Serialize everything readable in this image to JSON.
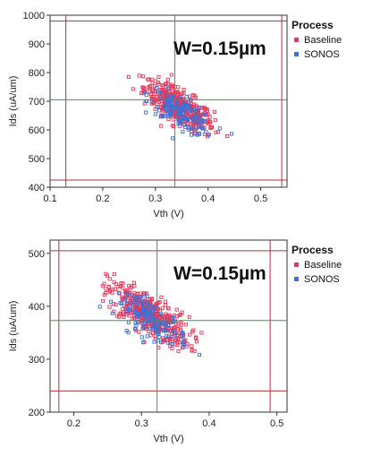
{
  "chart_data": [
    {
      "type": "scatter",
      "title": "",
      "xlabel": "Vth (V)",
      "ylabel": "Ids (uA/um)",
      "xlim": [
        0.1,
        0.55
      ],
      "ylim": [
        400,
        1000
      ],
      "xticks": [
        "0.1",
        "0.2",
        "0.3",
        "0.4",
        "0.5"
      ],
      "yticks": [
        "400",
        "500",
        "600",
        "700",
        "800",
        "900",
        "1000"
      ],
      "annotation": "W=0.15µm",
      "legend": {
        "title": "Process",
        "position": "right"
      },
      "reference_lines": {
        "green_vertical_x": 0.337,
        "green_horizontal_y": 705,
        "red_vertical_x": [
          0.13,
          0.54
        ],
        "red_horizontal_y": [
          980,
          425
        ]
      },
      "series": [
        {
          "name": "Baseline",
          "color": "#e8385a",
          "marker": "hollow-square",
          "center": [
            0.345,
            680
          ],
          "spread": [
            0.033,
            45
          ],
          "correlation": -0.75,
          "count": 420,
          "x_range": [
            0.23,
            0.45
          ],
          "y_range": [
            555,
            830
          ]
        },
        {
          "name": "SONOS",
          "color": "#3a72d8",
          "marker": "hollow-square",
          "center": [
            0.35,
            660
          ],
          "spread": [
            0.03,
            40
          ],
          "correlation": -0.75,
          "count": 140,
          "x_range": [
            0.24,
            0.47
          ],
          "y_range": [
            550,
            770
          ]
        }
      ]
    },
    {
      "type": "scatter",
      "title": "",
      "xlabel": "Vth (V)",
      "ylabel": "Ids (uA/um)",
      "xlim": [
        0.165,
        0.515
      ],
      "ylim": [
        200,
        525
      ],
      "xticks": [
        "0.2",
        "0.3",
        "0.4",
        "0.5"
      ],
      "yticks": [
        "200",
        "300",
        "400",
        "500"
      ],
      "annotation": "W=0.15µm",
      "legend": {
        "title": "Process",
        "position": "right"
      },
      "reference_lines": {
        "green_vertical_x": 0.323,
        "green_horizontal_y": 373,
        "red_vertical_x": [
          0.178,
          0.49
        ],
        "red_horizontal_y": [
          505,
          240
        ]
      },
      "series": [
        {
          "name": "Baseline",
          "color": "#e8385a",
          "marker": "hollow-square",
          "center": [
            0.31,
            385
          ],
          "spread": [
            0.03,
            30
          ],
          "correlation": -0.75,
          "count": 420,
          "x_range": [
            0.24,
            0.42
          ],
          "y_range": [
            245,
            465
          ]
        },
        {
          "name": "SONOS",
          "color": "#3a72d8",
          "marker": "hollow-square",
          "center": [
            0.315,
            375
          ],
          "spread": [
            0.027,
            25
          ],
          "correlation": -0.75,
          "count": 140,
          "x_range": [
            0.21,
            0.4
          ],
          "y_range": [
            285,
            425
          ]
        }
      ]
    }
  ]
}
